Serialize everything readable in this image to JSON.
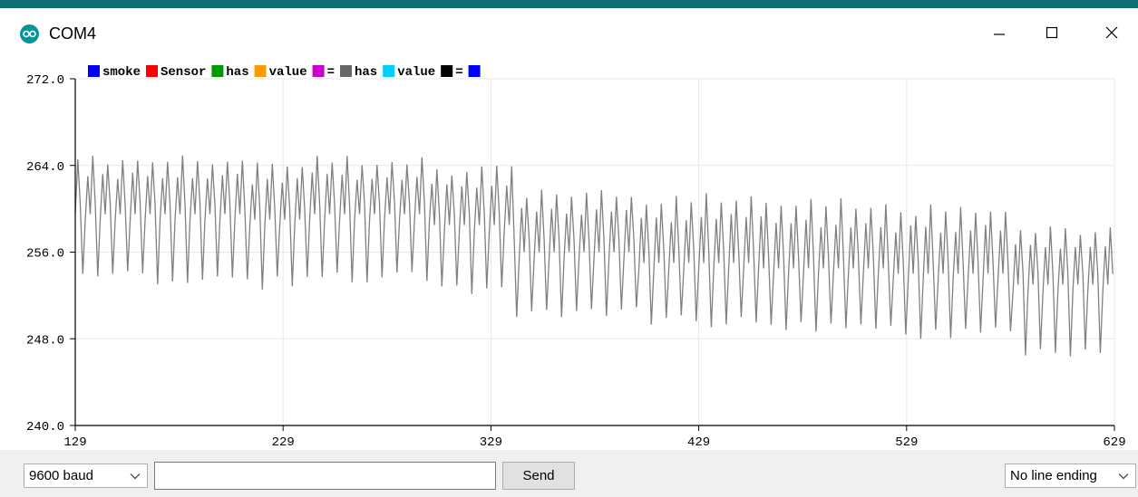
{
  "window": {
    "title": "COM4",
    "app_icon": "arduino-infinity-icon",
    "controls": {
      "minimize": "minimize-icon",
      "maximize": "maximize-icon",
      "close": "close-icon"
    }
  },
  "colors": {
    "title_strip": "#0e6f74",
    "app_icon_bg": "#00979c",
    "trace": "#808080",
    "grid": "#e8e8e8"
  },
  "legend": [
    {
      "label": "smoke",
      "color": "#0000ff"
    },
    {
      "label": "Sensor",
      "color": "#ff0000"
    },
    {
      "label": "has",
      "color": "#009900"
    },
    {
      "label": "value",
      "color": "#ff9900"
    },
    {
      "label": "=",
      "color": "#cc00cc"
    },
    {
      "label": "has",
      "color": "#666666"
    },
    {
      "label": "value",
      "color": "#00ccff"
    },
    {
      "label": "=",
      "color": "#000000"
    },
    {
      "label": "",
      "color": "#0000ff"
    }
  ],
  "chart_data": {
    "type": "line",
    "title": "",
    "xlabel": "",
    "ylabel": "",
    "xlim": [
      129,
      629
    ],
    "ylim": [
      240,
      272
    ],
    "x_ticks": [
      "129",
      "229",
      "329",
      "429",
      "529",
      "629"
    ],
    "y_ticks": [
      "272.0",
      "264.0",
      "256.0",
      "248.0",
      "240.0"
    ],
    "grid": true,
    "legend_position": "top-left",
    "series": [
      {
        "name": "has",
        "color": "#808080",
        "segments": [
          {
            "x_start": 129,
            "x_end": 210,
            "mid": 259.5,
            "high": 265.0,
            "low": 253.0
          },
          {
            "x_start": 210,
            "x_end": 240,
            "mid": 259.0,
            "high": 264.5,
            "low": 252.5
          },
          {
            "x_start": 240,
            "x_end": 300,
            "mid": 259.5,
            "high": 265.0,
            "low": 253.0
          },
          {
            "x_start": 300,
            "x_end": 340,
            "mid": 258.5,
            "high": 264.0,
            "low": 252.0
          },
          {
            "x_start": 340,
            "x_end": 400,
            "mid": 256.0,
            "high": 262.0,
            "low": 250.0
          },
          {
            "x_start": 400,
            "x_end": 460,
            "mid": 255.0,
            "high": 261.5,
            "low": 249.0
          },
          {
            "x_start": 460,
            "x_end": 520,
            "mid": 254.5,
            "high": 261.0,
            "low": 248.5
          },
          {
            "x_start": 520,
            "x_end": 580,
            "mid": 254.0,
            "high": 260.5,
            "low": 248.0
          },
          {
            "x_start": 580,
            "x_end": 629,
            "mid": 253.0,
            "high": 258.5,
            "low": 246.0
          }
        ],
        "period": 3.6
      }
    ]
  },
  "bottom_bar": {
    "baud_value": "9600 baud",
    "send_placeholder": "",
    "send_label": "Send",
    "line_ending_value": "No line ending"
  }
}
